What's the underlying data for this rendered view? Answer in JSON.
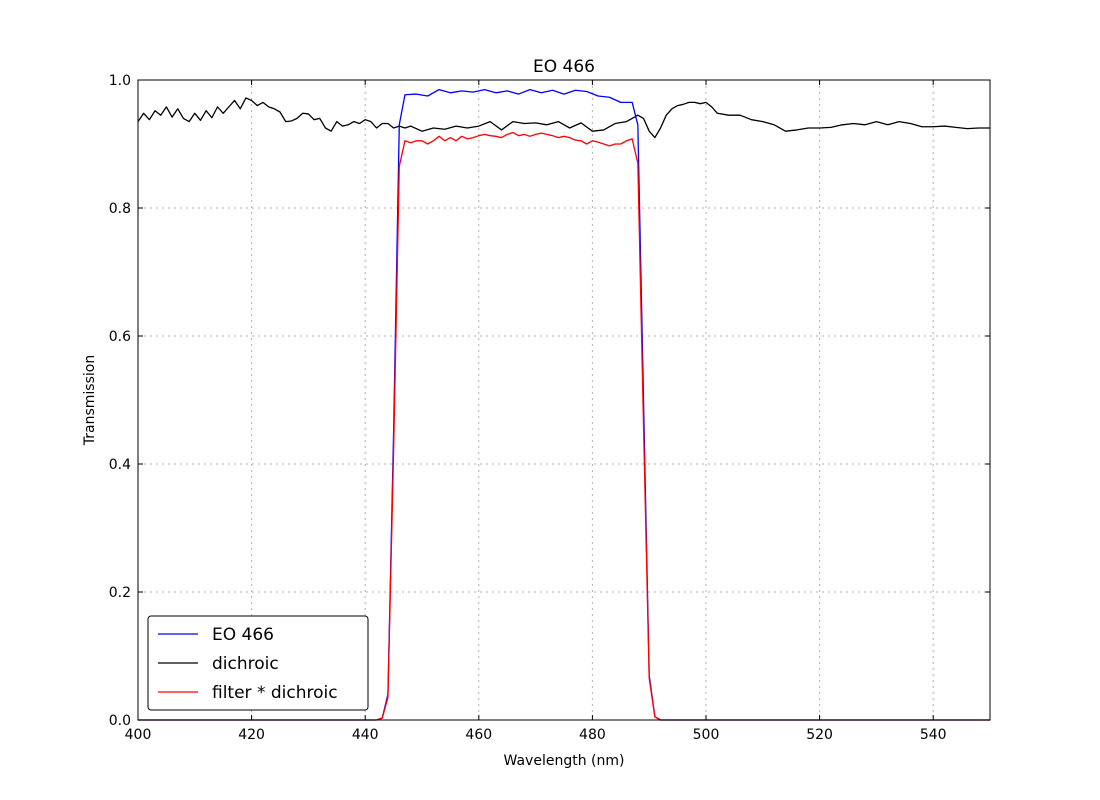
{
  "chart_data": {
    "type": "line",
    "title": "EO 466",
    "xlabel": "Wavelength (nm)",
    "ylabel": "Transmission",
    "xlim": [
      400,
      550
    ],
    "ylim": [
      0.0,
      1.0
    ],
    "xticks": [
      400,
      420,
      440,
      460,
      480,
      500,
      520,
      540
    ],
    "xtick_labels": [
      "400",
      "420",
      "440",
      "460",
      "480",
      "500",
      "520",
      "540"
    ],
    "yticks": [
      0.0,
      0.2,
      0.4,
      0.6,
      0.8,
      1.0
    ],
    "ytick_labels": [
      "0.0",
      "0.2",
      "0.4",
      "0.6",
      "0.8",
      "1.0"
    ],
    "grid": true,
    "legend_position": "lower-left",
    "series": [
      {
        "name": "EO 466",
        "color": "#0000ff",
        "x": [
          400,
          442,
          443,
          444,
          445,
          446,
          447,
          449,
          451,
          453,
          455,
          457,
          459,
          461,
          463,
          465,
          467,
          469,
          471,
          473,
          475,
          477,
          479,
          481,
          483,
          485,
          487,
          488,
          489,
          490,
          491,
          492,
          550
        ],
        "y": [
          0.0,
          0.0,
          0.003,
          0.04,
          0.45,
          0.93,
          0.977,
          0.978,
          0.975,
          0.985,
          0.98,
          0.983,
          0.981,
          0.985,
          0.98,
          0.983,
          0.978,
          0.985,
          0.98,
          0.984,
          0.978,
          0.984,
          0.982,
          0.975,
          0.973,
          0.965,
          0.965,
          0.93,
          0.5,
          0.07,
          0.005,
          0.0,
          0.0
        ]
      },
      {
        "name": "dichroic",
        "color": "#000000",
        "x": [
          400,
          401,
          402,
          403,
          404,
          405,
          406,
          407,
          408,
          409,
          410,
          411,
          412,
          413,
          414,
          415,
          416,
          417,
          418,
          419,
          420,
          421,
          422,
          423,
          424,
          425,
          426,
          427,
          428,
          429,
          430,
          431,
          432,
          433,
          434,
          435,
          436,
          437,
          438,
          439,
          440,
          441,
          442,
          443,
          444,
          445,
          446,
          447,
          448,
          450,
          452,
          454,
          456,
          458,
          460,
          462,
          464,
          466,
          468,
          470,
          472,
          474,
          476,
          478,
          480,
          482,
          484,
          486,
          488,
          489,
          490,
          491,
          492,
          493,
          494,
          495,
          496,
          497,
          498,
          499,
          500,
          501,
          502,
          504,
          506,
          508,
          510,
          512,
          514,
          516,
          518,
          520,
          522,
          524,
          526,
          528,
          530,
          532,
          534,
          536,
          538,
          540,
          542,
          544,
          546,
          548,
          550
        ],
        "y": [
          0.935,
          0.948,
          0.938,
          0.952,
          0.945,
          0.958,
          0.942,
          0.955,
          0.94,
          0.935,
          0.948,
          0.937,
          0.952,
          0.941,
          0.958,
          0.948,
          0.958,
          0.968,
          0.955,
          0.972,
          0.968,
          0.96,
          0.965,
          0.958,
          0.955,
          0.95,
          0.935,
          0.936,
          0.94,
          0.948,
          0.947,
          0.938,
          0.94,
          0.925,
          0.92,
          0.935,
          0.928,
          0.93,
          0.935,
          0.932,
          0.938,
          0.935,
          0.925,
          0.932,
          0.932,
          0.925,
          0.928,
          0.925,
          0.928,
          0.92,
          0.925,
          0.923,
          0.928,
          0.925,
          0.928,
          0.935,
          0.922,
          0.935,
          0.932,
          0.933,
          0.93,
          0.935,
          0.925,
          0.933,
          0.92,
          0.922,
          0.932,
          0.935,
          0.945,
          0.94,
          0.92,
          0.91,
          0.925,
          0.945,
          0.955,
          0.96,
          0.962,
          0.965,
          0.965,
          0.963,
          0.965,
          0.958,
          0.948,
          0.945,
          0.945,
          0.938,
          0.935,
          0.93,
          0.92,
          0.922,
          0.925,
          0.925,
          0.926,
          0.93,
          0.932,
          0.93,
          0.935,
          0.93,
          0.935,
          0.932,
          0.927,
          0.927,
          0.928,
          0.926,
          0.924,
          0.925,
          0.925
        ]
      },
      {
        "name": "filter * dichroic",
        "color": "#ff0000",
        "x": [
          400,
          442,
          443,
          444,
          445,
          446,
          447,
          448,
          449,
          450,
          451,
          452,
          453,
          454,
          455,
          456,
          457,
          458,
          459,
          460,
          461,
          462,
          463,
          464,
          465,
          466,
          467,
          468,
          469,
          470,
          471,
          472,
          473,
          474,
          475,
          476,
          477,
          478,
          479,
          480,
          481,
          482,
          483,
          484,
          485,
          486,
          487,
          488,
          489,
          490,
          491,
          492,
          550
        ],
        "y": [
          0.0,
          0.0,
          0.003,
          0.035,
          0.42,
          0.865,
          0.905,
          0.902,
          0.905,
          0.905,
          0.9,
          0.905,
          0.912,
          0.905,
          0.91,
          0.905,
          0.912,
          0.908,
          0.91,
          0.913,
          0.915,
          0.913,
          0.912,
          0.91,
          0.915,
          0.918,
          0.913,
          0.915,
          0.912,
          0.915,
          0.917,
          0.915,
          0.913,
          0.91,
          0.912,
          0.91,
          0.906,
          0.905,
          0.9,
          0.905,
          0.903,
          0.9,
          0.897,
          0.9,
          0.9,
          0.905,
          0.908,
          0.87,
          0.46,
          0.065,
          0.005,
          0.0,
          0.0
        ]
      }
    ]
  }
}
